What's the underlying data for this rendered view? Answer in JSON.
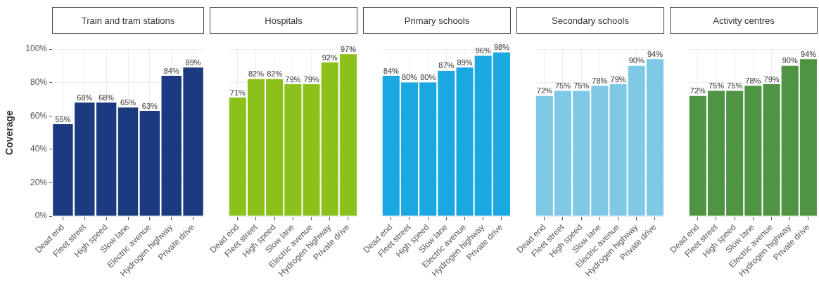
{
  "chart_data": [
    {
      "type": "bar",
      "title": "Train and tram stations",
      "ylabel": "Coverage",
      "categories": [
        "Dead end",
        "Fleet street",
        "High speed",
        "Slow lane",
        "Electric avenue",
        "Hydrogen highway",
        "Private drive"
      ],
      "values": [
        55,
        68,
        68,
        65,
        63,
        84,
        89
      ],
      "value_labels": [
        "55%",
        "68%",
        "68%",
        "65%",
        "63%",
        "84%",
        "89%"
      ],
      "color": "#1b3a7f",
      "ylim": [
        0,
        100
      ],
      "yticks": [
        {
          "value": 0,
          "label": "0%"
        },
        {
          "value": 20,
          "label": "20%"
        },
        {
          "value": 40,
          "label": "40%"
        },
        {
          "value": 60,
          "label": "60%"
        },
        {
          "value": 80,
          "label": "80%"
        },
        {
          "value": 100,
          "label": "100%"
        }
      ],
      "grid": true,
      "legend": false
    },
    {
      "type": "bar",
      "title": "Hospitals",
      "categories": [
        "Dead end",
        "Fleet street",
        "High speed",
        "Slow lane",
        "Electric avenue",
        "Hydrogen highway",
        "Private drive"
      ],
      "values": [
        71,
        82,
        82,
        79,
        79,
        92,
        97
      ],
      "value_labels": [
        "71%",
        "82%",
        "82%",
        "79%",
        "79%",
        "92%",
        "97%"
      ],
      "color": "#8cc11b",
      "ylim": [
        0,
        100
      ],
      "tick_labels": "x",
      "grid": true,
      "legend": false
    },
    {
      "type": "bar",
      "title": "Primary schools",
      "categories": [
        "Dead end",
        "Fleet street",
        "High speed",
        "Slow lane",
        "Electric avenue",
        "Hydrogen highway",
        "Private drive"
      ],
      "values": [
        84,
        80,
        80,
        87,
        89,
        96,
        98
      ],
      "value_labels": [
        "84%",
        "80%",
        "80%",
        "87%",
        "89%",
        "96%",
        "98%"
      ],
      "color": "#1ba7e1",
      "ylim": [
        0,
        100
      ],
      "tick_labels": "x",
      "grid": true,
      "legend": false
    },
    {
      "type": "bar",
      "title": "Secondary schools",
      "categories": [
        "Dead end",
        "Fleet street",
        "High speed",
        "Slow lane",
        "Electric avenue",
        "Hydrogen highway",
        "Private drive"
      ],
      "values": [
        72,
        75,
        75,
        78,
        79,
        90,
        94
      ],
      "value_labels": [
        "72%",
        "75%",
        "75%",
        "78%",
        "79%",
        "90%",
        "94%"
      ],
      "color": "#7fc9e7",
      "ylim": [
        0,
        100
      ],
      "tick_labels": "x",
      "grid": true,
      "legend": false
    },
    {
      "type": "bar",
      "title": "Activity centres",
      "categories": [
        "Dead end",
        "Fleet street",
        "High speed",
        "Slow lane",
        "Electric avenue",
        "Hydrogen highway",
        "Private drive"
      ],
      "values": [
        72,
        75,
        75,
        78,
        79,
        90,
        94
      ],
      "value_labels": [
        "72%",
        "75%",
        "75%",
        "78%",
        "79%",
        "90%",
        "94%"
      ],
      "color": "#4f9442",
      "ylim": [
        0,
        100
      ],
      "tick_labels": "x",
      "grid": true,
      "legend": false
    }
  ]
}
